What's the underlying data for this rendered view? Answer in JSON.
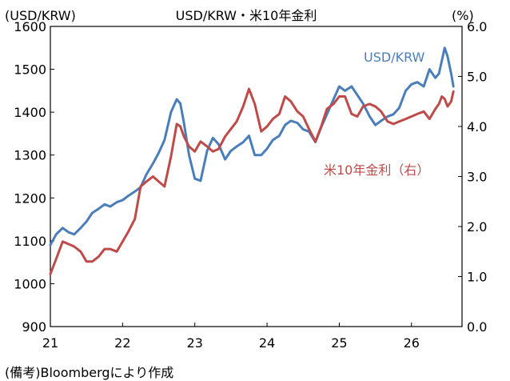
{
  "chart_data": {
    "type": "line",
    "title": "USD/KRW・米10年金利",
    "left_axis_unit": "(USD/KRW)",
    "right_axis_unit": "(%)",
    "ylim_left": [
      900,
      1600
    ],
    "ylim_right": [
      0.0,
      6.0
    ],
    "left_ticks": [
      "900",
      "1000",
      "1100",
      "1200",
      "1300",
      "1400",
      "1500",
      "1600"
    ],
    "right_ticks": [
      "0.0",
      "1.0",
      "2.0",
      "3.0",
      "4.0",
      "5.0",
      "6.0"
    ],
    "x_ticks": [
      "21",
      "22",
      "23",
      "24",
      "25",
      "26"
    ],
    "xlim": [
      2021.0,
      2026.7
    ],
    "grid": false,
    "colors": {
      "usdkrw": "#4a7ebb",
      "us10y": "#be4b48"
    },
    "series": [
      {
        "name": "USD/KRW",
        "axis": "left",
        "x": [
          2021.0,
          2021.08,
          2021.17,
          2021.25,
          2021.33,
          2021.42,
          2021.5,
          2021.58,
          2021.67,
          2021.75,
          2021.83,
          2021.92,
          2022.0,
          2022.08,
          2022.17,
          2022.25,
          2022.33,
          2022.42,
          2022.5,
          2022.58,
          2022.67,
          2022.75,
          2022.8,
          2022.85,
          2022.92,
          2023.0,
          2023.08,
          2023.17,
          2023.25,
          2023.33,
          2023.42,
          2023.5,
          2023.58,
          2023.67,
          2023.75,
          2023.83,
          2023.92,
          2024.0,
          2024.08,
          2024.17,
          2024.25,
          2024.33,
          2024.42,
          2024.5,
          2024.58,
          2024.67,
          2024.75,
          2024.83,
          2024.92,
          2025.0,
          2025.08,
          2025.17,
          2025.25,
          2025.33,
          2025.42,
          2025.5,
          2025.58,
          2025.67,
          2025.75,
          2025.83,
          2025.92,
          2026.0,
          2026.08,
          2026.17,
          2026.25,
          2026.33,
          2026.38,
          2026.42,
          2026.46,
          2026.5,
          2026.55,
          2026.58
        ],
        "values": [
          1090,
          1115,
          1130,
          1120,
          1115,
          1130,
          1145,
          1165,
          1175,
          1185,
          1180,
          1190,
          1195,
          1205,
          1215,
          1225,
          1255,
          1280,
          1305,
          1335,
          1400,
          1430,
          1420,
          1375,
          1300,
          1245,
          1240,
          1310,
          1340,
          1325,
          1290,
          1310,
          1320,
          1330,
          1345,
          1300,
          1300,
          1315,
          1335,
          1345,
          1370,
          1380,
          1375,
          1360,
          1355,
          1330,
          1365,
          1395,
          1430,
          1460,
          1450,
          1460,
          1440,
          1420,
          1390,
          1370,
          1380,
          1390,
          1395,
          1410,
          1450,
          1465,
          1470,
          1460,
          1500,
          1480,
          1490,
          1520,
          1550,
          1530,
          1490,
          1460
        ]
      },
      {
        "name": "米10年金利（右）",
        "axis": "right",
        "x": [
          2021.0,
          2021.08,
          2021.17,
          2021.25,
          2021.33,
          2021.42,
          2021.5,
          2021.58,
          2021.67,
          2021.75,
          2021.83,
          2021.92,
          2022.0,
          2022.08,
          2022.17,
          2022.25,
          2022.33,
          2022.42,
          2022.5,
          2022.58,
          2022.67,
          2022.75,
          2022.8,
          2022.85,
          2022.92,
          2023.0,
          2023.08,
          2023.17,
          2023.25,
          2023.33,
          2023.42,
          2023.5,
          2023.58,
          2023.67,
          2023.75,
          2023.83,
          2023.92,
          2024.0,
          2024.08,
          2024.17,
          2024.25,
          2024.33,
          2024.42,
          2024.5,
          2024.58,
          2024.67,
          2024.75,
          2024.83,
          2024.92,
          2025.0,
          2025.08,
          2025.17,
          2025.25,
          2025.33,
          2025.42,
          2025.5,
          2025.58,
          2025.67,
          2025.75,
          2025.83,
          2025.92,
          2026.0,
          2026.08,
          2026.17,
          2026.25,
          2026.33,
          2026.38,
          2026.42,
          2026.46,
          2026.5,
          2026.55,
          2026.58
        ],
        "values": [
          1.05,
          1.35,
          1.7,
          1.65,
          1.6,
          1.5,
          1.3,
          1.3,
          1.4,
          1.55,
          1.55,
          1.5,
          1.7,
          1.9,
          2.15,
          2.8,
          2.9,
          3.0,
          2.9,
          2.8,
          3.4,
          4.05,
          4.0,
          3.8,
          3.6,
          3.5,
          3.7,
          3.6,
          3.5,
          3.55,
          3.8,
          3.95,
          4.1,
          4.4,
          4.75,
          4.45,
          3.9,
          4.0,
          4.15,
          4.25,
          4.6,
          4.5,
          4.3,
          4.2,
          3.95,
          3.7,
          4.0,
          4.35,
          4.45,
          4.6,
          4.6,
          4.25,
          4.2,
          4.4,
          4.45,
          4.4,
          4.3,
          4.1,
          4.05,
          4.1,
          4.15,
          4.2,
          4.25,
          4.3,
          4.15,
          4.35,
          4.45,
          4.6,
          4.55,
          4.4,
          4.5,
          4.7
        ]
      }
    ],
    "annotations": {
      "usdkrw_label": "USD/KRW",
      "us10y_label": "米10年金利（右）"
    }
  },
  "source_note": "(備考)Bloombergにより作成"
}
